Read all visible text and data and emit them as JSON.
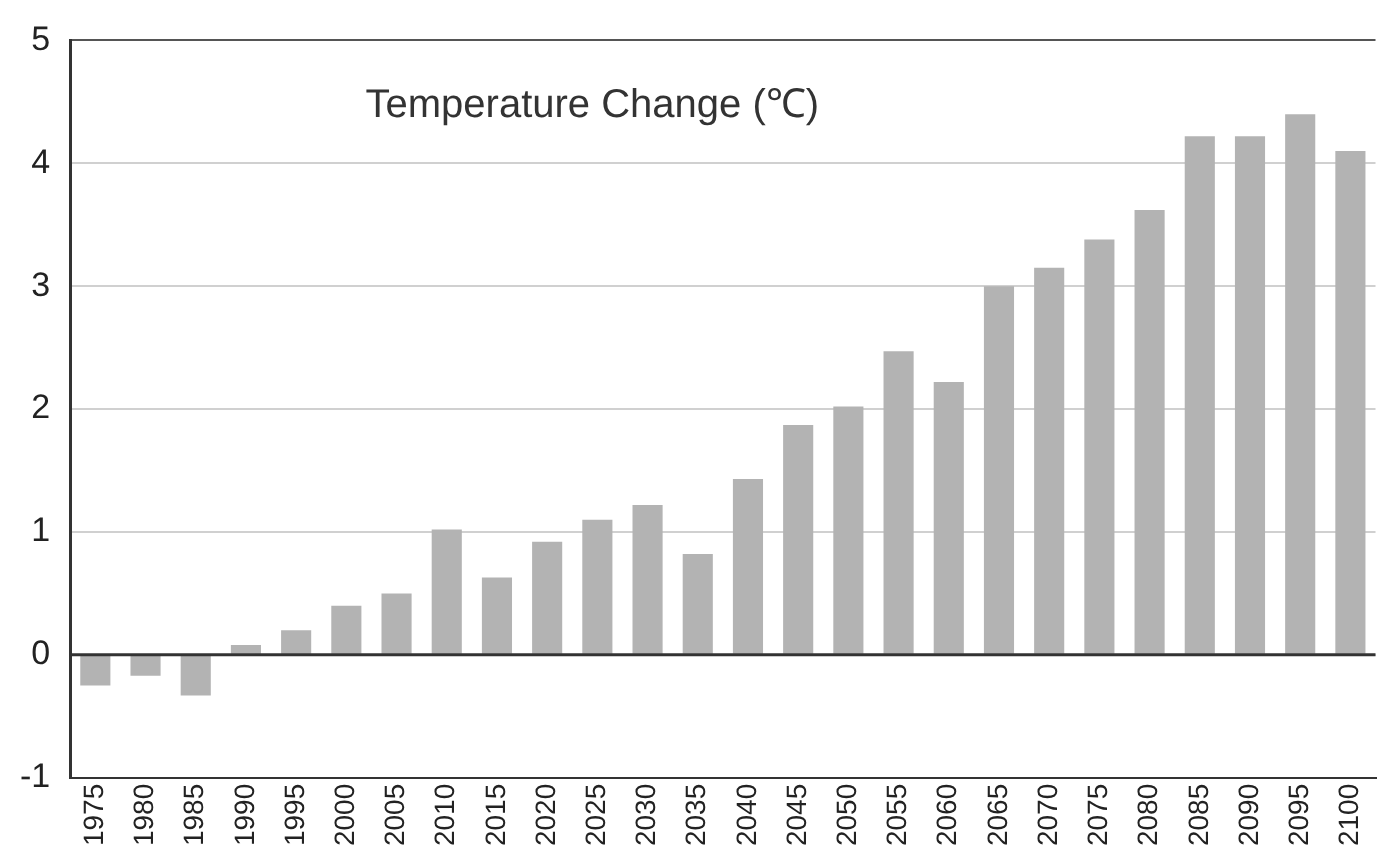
{
  "chart_data": {
    "type": "bar",
    "title": "Temperature Change (℃)",
    "categories": [
      "1975",
      "1980",
      "1985",
      "1990",
      "1995",
      "2000",
      "2005",
      "2010",
      "2015",
      "2020",
      "2025",
      "2030",
      "2035",
      "2040",
      "2045",
      "2050",
      "2055",
      "2060",
      "2065",
      "2070",
      "2075",
      "2080",
      "2085",
      "2090",
      "2095",
      "2100"
    ],
    "values": [
      -0.25,
      -0.17,
      -0.33,
      0.08,
      0.2,
      0.4,
      0.5,
      1.02,
      0.63,
      0.92,
      1.1,
      1.22,
      0.82,
      1.43,
      1.87,
      2.02,
      2.47,
      2.22,
      3.0,
      3.15,
      3.38,
      3.62,
      4.22,
      4.22,
      4.4,
      4.1
    ],
    "color": "#b3b3b3",
    "ylim": [
      -1,
      5
    ],
    "yticks": [
      -1,
      0,
      1,
      2,
      3,
      4,
      5
    ],
    "grid": "y"
  }
}
